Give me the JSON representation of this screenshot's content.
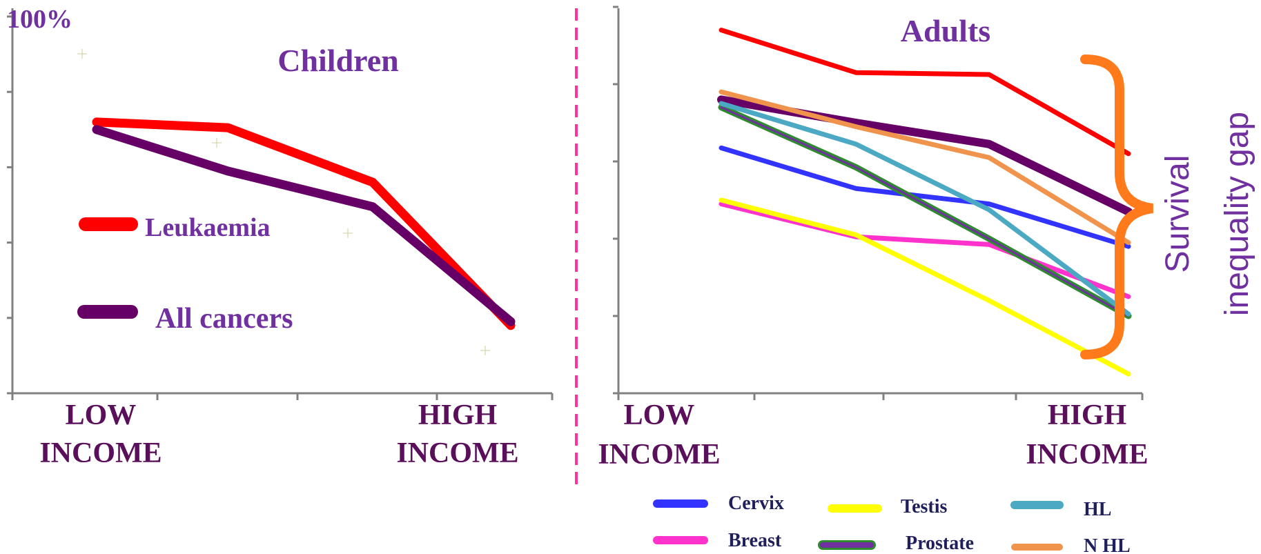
{
  "colors": {
    "text_purple": "#7030A0",
    "text_dark": "#5A0F5A",
    "legend_text": "#1F1F5C",
    "divider": "#FF3399",
    "brace": "#FF7A1A",
    "axis": "#808080"
  },
  "chart_data": [
    {
      "type": "line",
      "title": "Children",
      "top_label": "100%",
      "x_labels": {
        "low": [
          "LOW",
          "INCOME"
        ],
        "high": [
          "HIGH",
          "INCOME"
        ]
      },
      "x": [
        1,
        2,
        3,
        4
      ],
      "ylim": [
        0,
        100
      ],
      "series": [
        {
          "name": "Leukaemia",
          "color": "#FF0000",
          "values": [
            72,
            70.5,
            56,
            18
          ]
        },
        {
          "name": "All cancers",
          "color": "#660066",
          "values": [
            70,
            59,
            49.5,
            19
          ]
        }
      ],
      "legend_placement": "center-left"
    },
    {
      "type": "line",
      "title": "Adults",
      "x_labels": {
        "low": [
          "LOW",
          "INCOME"
        ],
        "high": [
          "HIGH",
          "INCOME"
        ]
      },
      "x": [
        1,
        2,
        3,
        4
      ],
      "ylim": [
        0,
        100
      ],
      "annotation": [
        "Survival",
        "inequality gap"
      ],
      "series": [
        {
          "name": "",
          "color": "#FF0000",
          "values": [
            94,
            83,
            82.5,
            62
          ]
        },
        {
          "name": "",
          "color": "#660066",
          "values": [
            76,
            70,
            64.5,
            47
          ]
        },
        {
          "name": "Cervix",
          "color": "#3333FF",
          "values": [
            63.5,
            53,
            49,
            38
          ]
        },
        {
          "name": "Breast",
          "color": "#FF33CC",
          "values": [
            49,
            40.5,
            38.5,
            25
          ]
        },
        {
          "name": "Testis",
          "color": "#FFFF00",
          "values": [
            50,
            41,
            24,
            5
          ]
        },
        {
          "name": "Prostate",
          "color": "#2E8B2E",
          "values": [
            74,
            58.5,
            40,
            20
          ]
        },
        {
          "name": "HL",
          "color": "#4BA9C4",
          "values": [
            75,
            64.5,
            47.5,
            20.5
          ]
        },
        {
          "name": "N HL",
          "color": "#F0944D",
          "values": [
            78,
            69,
            61,
            39
          ]
        }
      ],
      "legend_placement": "bottom"
    }
  ]
}
